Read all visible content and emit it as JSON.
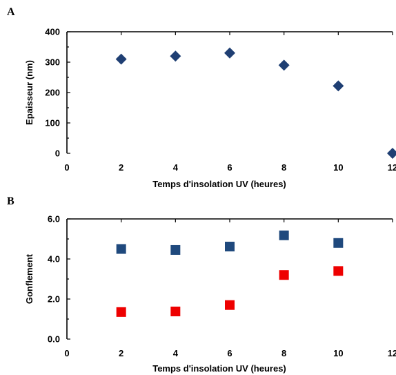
{
  "chart_data": [
    {
      "panel_label": "A",
      "type": "scatter",
      "xlabel": "Temps d'insolation UV (heures)",
      "ylabel": "Epaisseur (nm)",
      "xlim": [
        0,
        12
      ],
      "ylim": [
        0,
        400
      ],
      "xticks": [
        "0",
        "2",
        "4",
        "6",
        "8",
        "10",
        "12"
      ],
      "yticks": [
        "0",
        "100",
        "200",
        "300",
        "400"
      ],
      "grid": false,
      "series": [
        {
          "marker": "diamond",
          "color": "#1f3f73",
          "points": [
            [
              2,
              310
            ],
            [
              4,
              320
            ],
            [
              6,
              330
            ],
            [
              8,
              290
            ],
            [
              10,
              222
            ],
            [
              12,
              0
            ]
          ]
        }
      ]
    },
    {
      "panel_label": "B",
      "type": "scatter",
      "xlabel": "Temps d'insolation UV (heures)",
      "ylabel": "Gonflement",
      "xlim": [
        0,
        12
      ],
      "ylim": [
        0,
        6
      ],
      "xticks": [
        "0",
        "2",
        "4",
        "6",
        "8",
        "10",
        "12"
      ],
      "yticks": [
        "0.0",
        "2.0",
        "4.0",
        "6.0"
      ],
      "grid": false,
      "series": [
        {
          "marker": "square",
          "color": "#1f497d",
          "points": [
            [
              2,
              4.5
            ],
            [
              4,
              4.45
            ],
            [
              6,
              4.62
            ],
            [
              8,
              5.18
            ],
            [
              10,
              4.8
            ]
          ]
        },
        {
          "marker": "square",
          "color": "#ee0000",
          "points": [
            [
              2,
              1.35
            ],
            [
              4,
              1.38
            ],
            [
              6,
              1.7
            ],
            [
              8,
              3.2
            ],
            [
              10,
              3.4
            ]
          ]
        }
      ]
    }
  ]
}
